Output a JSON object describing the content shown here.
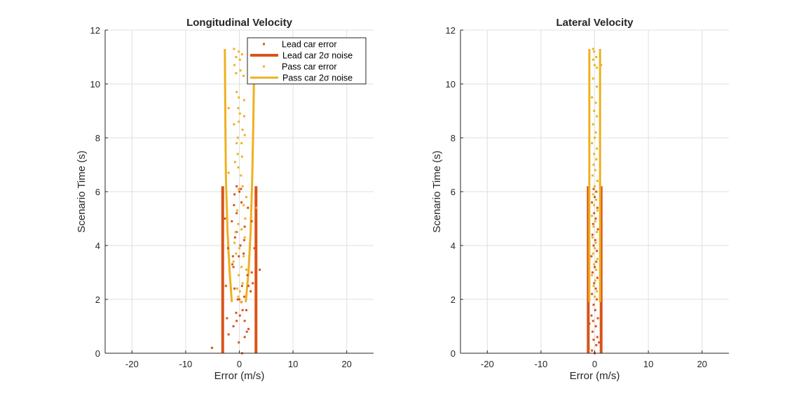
{
  "chart_data": [
    {
      "type": "scatter",
      "title": "Longitudinal Velocity",
      "xlabel": "Error (m/s)",
      "ylabel": "Scenario Time (s)",
      "xlim": [
        -25,
        25
      ],
      "ylim": [
        0,
        12
      ],
      "xticks": [
        -20,
        -10,
        0,
        10,
        20
      ],
      "yticks": [
        0,
        2,
        4,
        6,
        8,
        10,
        12
      ],
      "xtick_labels": [
        "-20",
        "-10",
        "0",
        "10",
        "20"
      ],
      "ytick_labels": [
        "0",
        "2",
        "4",
        "6",
        "8",
        "10",
        "12"
      ],
      "grid": true,
      "legend": {
        "placement": "top-right",
        "entries": [
          {
            "label": "Lead car error",
            "kind": "marker",
            "color": "#D95319"
          },
          {
            "label": "Lead  car  2σ  noise",
            "kind": "line",
            "color": "#D95319"
          },
          {
            "label": "Pass car error",
            "kind": "marker",
            "color": "#EDB120"
          },
          {
            "label": "Pass  car  2σ  noise",
            "kind": "line",
            "color": "#EDB120"
          }
        ]
      },
      "series": [
        {
          "name": "Lead car error",
          "kind": "scatter",
          "color": "#D95319",
          "points": [
            [
              -5.1,
              0.2
            ],
            [
              -2.0,
              0.7
            ],
            [
              0.5,
              0.0
            ],
            [
              -0.1,
              0.4
            ],
            [
              1.0,
              0.6
            ],
            [
              1.4,
              0.8
            ],
            [
              -1.1,
              1.0
            ],
            [
              1.7,
              0.9
            ],
            [
              -0.5,
              1.2
            ],
            [
              1.0,
              1.2
            ],
            [
              0.1,
              1.4
            ],
            [
              -0.6,
              1.5
            ],
            [
              1.3,
              1.6
            ],
            [
              -2.3,
              1.3
            ],
            [
              0.9,
              2.1
            ],
            [
              0.0,
              2.0
            ],
            [
              0.4,
              1.9
            ],
            [
              -0.9,
              2.4
            ],
            [
              0.5,
              2.5
            ],
            [
              2.1,
              2.3
            ],
            [
              -0.3,
              2.0
            ],
            [
              1.7,
              2.5
            ],
            [
              3.8,
              3.1
            ],
            [
              2.5,
              2.6
            ],
            [
              -1.2,
              3.6
            ],
            [
              -1.3,
              3.3
            ],
            [
              -0.1,
              3.6
            ],
            [
              0.8,
              3.7
            ],
            [
              -1.1,
              3.2
            ],
            [
              1.5,
              2.9
            ],
            [
              2.3,
              3.0
            ],
            [
              -0.5,
              4.5
            ],
            [
              0.2,
              4.0
            ],
            [
              -0.8,
              4.3
            ],
            [
              1.0,
              4.7
            ],
            [
              -1.4,
              4.9
            ],
            [
              0.9,
              4.2
            ],
            [
              -2.7,
              5.0
            ],
            [
              -0.5,
              5.2
            ],
            [
              0.4,
              5.6
            ],
            [
              -1.0,
              5.5
            ],
            [
              1.6,
              5.4
            ],
            [
              2.3,
              4.9
            ],
            [
              -0.5,
              6.2
            ],
            [
              0.0,
              6.0
            ],
            [
              -0.9,
              5.9
            ],
            [
              0.3,
              6.1
            ],
            [
              -2.5,
              2.5
            ],
            [
              -2.1,
              3.9
            ],
            [
              0.6,
              1.6
            ],
            [
              2.8,
              3.9
            ]
          ]
        },
        {
          "name": "Lead  car  2σ  noise",
          "kind": "band",
          "color": "#D95319",
          "lower": [
            [
              -3.1,
              0
            ],
            [
              -3.1,
              6.2
            ]
          ],
          "upper": [
            [
              3.1,
              0
            ],
            [
              3.1,
              6.2
            ]
          ]
        },
        {
          "name": "Pass car error",
          "kind": "scatter",
          "color": "#EDB120",
          "points": [
            [
              -1.0,
              11.3
            ],
            [
              -0.1,
              11.2
            ],
            [
              0.5,
              11.1
            ],
            [
              -0.6,
              11.0
            ],
            [
              0.1,
              10.9
            ],
            [
              -0.9,
              10.7
            ],
            [
              0.2,
              10.5
            ],
            [
              -0.6,
              10.4
            ],
            [
              0.8,
              10.3
            ],
            [
              -0.5,
              9.7
            ],
            [
              -0.1,
              9.5
            ],
            [
              0.9,
              9.4
            ],
            [
              -0.2,
              9.1
            ],
            [
              0.1,
              8.9
            ],
            [
              -2.0,
              9.1
            ],
            [
              0.9,
              8.8
            ],
            [
              -1.0,
              8.5
            ],
            [
              -0.1,
              8.6
            ],
            [
              0.6,
              8.3
            ],
            [
              1.0,
              8.1
            ],
            [
              -0.3,
              8.0
            ],
            [
              -0.5,
              7.8
            ],
            [
              0.4,
              7.8
            ],
            [
              -0.3,
              7.4
            ],
            [
              0.5,
              7.3
            ],
            [
              -0.8,
              7.1
            ],
            [
              -2.0,
              6.7
            ],
            [
              -0.2,
              6.9
            ],
            [
              0.3,
              6.6
            ],
            [
              0.6,
              6.2
            ],
            [
              -0.1,
              6.1
            ],
            [
              1.3,
              5.8
            ],
            [
              0.8,
              5.5
            ],
            [
              -0.4,
              5.3
            ],
            [
              1.1,
              5.0
            ],
            [
              -0.2,
              4.8
            ],
            [
              0.4,
              4.6
            ],
            [
              -0.7,
              4.5
            ],
            [
              -0.9,
              4.1
            ],
            [
              0.0,
              3.9
            ],
            [
              0.8,
              3.6
            ],
            [
              -1.1,
              3.4
            ],
            [
              0.4,
              3.2
            ],
            [
              1.3,
              3.1
            ],
            [
              -0.1,
              2.9
            ],
            [
              0.6,
              2.6
            ],
            [
              -0.4,
              2.4
            ],
            [
              0.1,
              2.3
            ],
            [
              -0.2,
              2.1
            ],
            [
              0.3,
              1.9
            ],
            [
              -0.6,
              3.7
            ],
            [
              3.2,
              5.4
            ],
            [
              1.0,
              4.3
            ]
          ]
        },
        {
          "name": "Pass  car  2σ  noise",
          "kind": "band",
          "color": "#EDB120",
          "lower": [
            [
              -1.4,
              1.9
            ],
            [
              -1.8,
              3.0
            ],
            [
              -2.2,
              4.5
            ],
            [
              -2.5,
              6.5
            ],
            [
              -2.6,
              8.5
            ],
            [
              -2.7,
              11.3
            ]
          ],
          "upper": [
            [
              1.2,
              1.9
            ],
            [
              1.7,
              3.0
            ],
            [
              2.1,
              4.5
            ],
            [
              2.4,
              6.5
            ],
            [
              2.6,
              8.5
            ],
            [
              2.8,
              11.3
            ]
          ]
        }
      ]
    },
    {
      "type": "scatter",
      "title": "Lateral Velocity",
      "xlabel": "Error (m/s)",
      "ylabel": "Scenario Time (s)",
      "xlim": [
        -25,
        25
      ],
      "ylim": [
        0,
        12
      ],
      "xticks": [
        -20,
        -10,
        0,
        10,
        20
      ],
      "yticks": [
        0,
        2,
        4,
        6,
        8,
        10,
        12
      ],
      "xtick_labels": [
        "-20",
        "-10",
        "0",
        "10",
        "20"
      ],
      "ytick_labels": [
        "0",
        "2",
        "4",
        "6",
        "8",
        "10",
        "12"
      ],
      "grid": true,
      "series": [
        {
          "name": "Lead car error",
          "kind": "scatter",
          "color": "#D95319",
          "points": [
            [
              -0.5,
              0.1
            ],
            [
              0.3,
              0.3
            ],
            [
              -0.2,
              0.5
            ],
            [
              0.5,
              0.6
            ],
            [
              -0.4,
              0.8
            ],
            [
              0.2,
              1.0
            ],
            [
              -0.3,
              1.2
            ],
            [
              0.6,
              1.3
            ],
            [
              -0.6,
              1.4
            ],
            [
              0.1,
              1.6
            ],
            [
              -0.2,
              1.8
            ],
            [
              0.4,
              2.0
            ],
            [
              -0.5,
              2.2
            ],
            [
              0.2,
              2.4
            ],
            [
              -0.1,
              2.6
            ],
            [
              0.5,
              2.8
            ],
            [
              -0.4,
              3.0
            ],
            [
              0.0,
              3.2
            ],
            [
              0.3,
              3.4
            ],
            [
              -0.6,
              3.6
            ],
            [
              0.4,
              3.8
            ],
            [
              -0.2,
              4.0
            ],
            [
              0.1,
              4.2
            ],
            [
              -0.4,
              4.4
            ],
            [
              0.6,
              4.6
            ],
            [
              -0.3,
              4.8
            ],
            [
              0.2,
              5.0
            ],
            [
              -0.1,
              5.2
            ],
            [
              0.5,
              5.4
            ],
            [
              -0.5,
              5.6
            ],
            [
              0.0,
              5.8
            ],
            [
              0.3,
              6.0
            ],
            [
              -0.2,
              6.1
            ],
            [
              0.0,
              0.0
            ],
            [
              -1.0,
              1.1
            ],
            [
              0.8,
              0.4
            ]
          ]
        },
        {
          "name": "Lead  car  2σ  noise",
          "kind": "band",
          "color": "#D95319",
          "lower": [
            [
              -1.2,
              0
            ],
            [
              -1.2,
              6.2
            ]
          ],
          "upper": [
            [
              1.2,
              0
            ],
            [
              1.2,
              6.2
            ]
          ]
        },
        {
          "name": "Pass car error",
          "kind": "scatter",
          "color": "#EDB120",
          "points": [
            [
              -0.3,
              11.3
            ],
            [
              -0.1,
              11.2
            ],
            [
              0.3,
              11.0
            ],
            [
              -0.3,
              10.9
            ],
            [
              0.0,
              10.7
            ],
            [
              0.4,
              10.6
            ],
            [
              1.2,
              10.7
            ],
            [
              -0.3,
              10.2
            ],
            [
              0.4,
              9.9
            ],
            [
              -0.5,
              9.5
            ],
            [
              0.2,
              9.3
            ],
            [
              -0.1,
              9.0
            ],
            [
              0.4,
              8.8
            ],
            [
              -0.3,
              8.5
            ],
            [
              0.2,
              8.2
            ],
            [
              0.0,
              8.0
            ],
            [
              -0.5,
              7.8
            ],
            [
              0.4,
              7.6
            ],
            [
              -0.1,
              7.4
            ],
            [
              0.3,
              7.2
            ],
            [
              -0.2,
              7.0
            ],
            [
              0.1,
              6.8
            ],
            [
              -0.4,
              6.6
            ],
            [
              0.5,
              6.4
            ],
            [
              0.0,
              6.2
            ],
            [
              -0.3,
              5.9
            ],
            [
              0.3,
              5.7
            ],
            [
              -0.1,
              5.5
            ],
            [
              0.5,
              5.3
            ],
            [
              -0.5,
              5.1
            ],
            [
              0.1,
              4.9
            ],
            [
              -0.2,
              4.7
            ],
            [
              0.4,
              4.5
            ],
            [
              -0.4,
              4.3
            ],
            [
              0.2,
              4.1
            ],
            [
              0.0,
              3.9
            ],
            [
              -0.3,
              3.7
            ],
            [
              0.5,
              3.5
            ],
            [
              -0.1,
              3.3
            ],
            [
              0.3,
              3.1
            ],
            [
              -0.5,
              2.9
            ],
            [
              0.1,
              2.7
            ],
            [
              -0.2,
              2.5
            ],
            [
              0.4,
              2.3
            ],
            [
              0.0,
              2.1
            ]
          ]
        },
        {
          "name": "Pass  car  2σ  noise",
          "kind": "band",
          "color": "#EDB120",
          "lower": [
            [
              -1.0,
              1.9
            ],
            [
              -1.0,
              11.3
            ]
          ],
          "upper": [
            [
              1.0,
              1.9
            ],
            [
              1.0,
              11.3
            ]
          ]
        }
      ]
    }
  ]
}
